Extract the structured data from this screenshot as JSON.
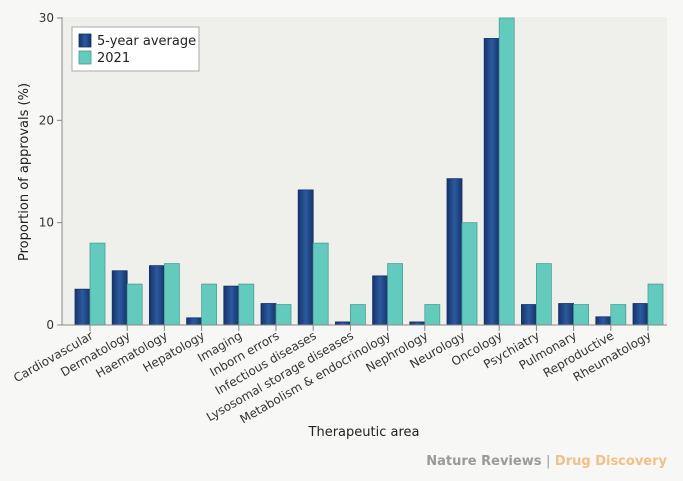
{
  "chart_data": {
    "type": "bar",
    "title": "",
    "xlabel": "Therapeutic area",
    "ylabel": "Proportion of approvals (%)",
    "ylim": [
      0,
      30
    ],
    "yticks": [
      0,
      10,
      20,
      30
    ],
    "grid": false,
    "legend_position": "top-left",
    "categories": [
      "Cardiovascular",
      "Dermatology",
      "Haematology",
      "Hepatology",
      "Imaging",
      "Inborn errors",
      "Infectious diseases",
      "Lysosomal storage diseases",
      "Metabolism & endocrinology",
      "Nephrology",
      "Neurology",
      "Oncology",
      "Psychiatry",
      "Pulmonary",
      "Reproductive",
      "Rheumatology"
    ],
    "series": [
      {
        "name": "5-year average",
        "color": "#1f4585",
        "values": [
          3.5,
          5.3,
          5.8,
          0.7,
          3.8,
          2.1,
          13.2,
          0.3,
          4.8,
          0.3,
          14.3,
          28.0,
          2.0,
          2.1,
          0.8,
          2.1
        ]
      },
      {
        "name": "2021",
        "color": "#63cbbd",
        "values": [
          8.0,
          4.0,
          6.0,
          4.0,
          4.0,
          2.0,
          8.0,
          2.0,
          6.0,
          2.0,
          10.0,
          30.0,
          6.0,
          2.0,
          2.0,
          4.0
        ]
      }
    ]
  },
  "credit": {
    "publisher": "Nature Reviews",
    "separator": "|",
    "journal": "Drug Discovery"
  }
}
